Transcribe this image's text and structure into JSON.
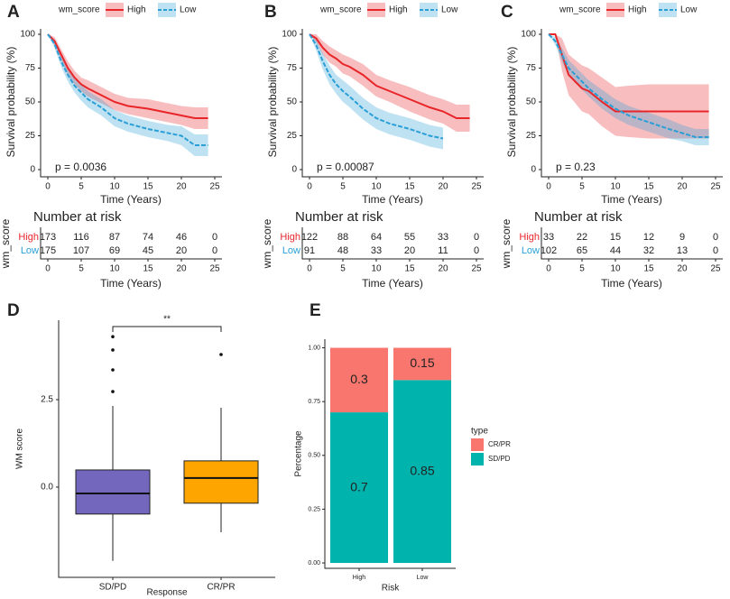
{
  "chart_data": [
    {
      "type": "survival",
      "panel_label": "A",
      "ylabel": "Survival probability (%)",
      "xlabel": "Time (Years)",
      "legend_title": "wm_score",
      "annotation": "p = 0.0036",
      "x": [
        0,
        1,
        2,
        3,
        4,
        5,
        6,
        8,
        10,
        12,
        15,
        18,
        20,
        22,
        24
      ],
      "xlim": [
        0,
        25
      ],
      "xticks": [
        0,
        5,
        10,
        15,
        20,
        25
      ],
      "ylim": [
        0,
        100
      ],
      "yticks": [
        0,
        25,
        50,
        75,
        100
      ],
      "series": [
        {
          "name": "High",
          "color": "#e8262a",
          "values": [
            100,
            95,
            85,
            75,
            68,
            63,
            60,
            55,
            50,
            47,
            45,
            42,
            40,
            38,
            38
          ],
          "upper": [
            100,
            98,
            89,
            80,
            73,
            68,
            66,
            61,
            56,
            53,
            52,
            49,
            47,
            46,
            46
          ],
          "lower": [
            100,
            92,
            81,
            70,
            63,
            58,
            54,
            49,
            44,
            41,
            38,
            35,
            33,
            30,
            30
          ]
        },
        {
          "name": "Low",
          "color": "#2a9fd6",
          "values": [
            100,
            93,
            80,
            70,
            62,
            57,
            52,
            46,
            38,
            34,
            30,
            27,
            25,
            18,
            18
          ],
          "upper": [
            100,
            96,
            84,
            75,
            67,
            63,
            58,
            52,
            44,
            40,
            36,
            33,
            32,
            26,
            26
          ],
          "lower": [
            100,
            90,
            76,
            65,
            57,
            51,
            46,
            40,
            32,
            28,
            24,
            21,
            18,
            10,
            10
          ]
        }
      ],
      "risk_table": {
        "title": "Number at risk",
        "ylabel": "wm_score",
        "rows": [
          [
            173,
            116,
            87,
            74,
            46,
            0
          ],
          [
            175,
            107,
            69,
            45,
            20,
            0
          ]
        ]
      }
    },
    {
      "type": "survival",
      "panel_label": "B",
      "ylabel": "Survival probability (%)",
      "xlabel": "Time (Years)",
      "legend_title": "wm_score",
      "annotation": "p = 0.00087",
      "x": [
        0,
        1,
        2,
        3,
        4,
        5,
        6,
        8,
        10,
        12,
        15,
        18,
        20,
        22,
        24
      ],
      "xlim": [
        0,
        25
      ],
      "xticks": [
        0,
        5,
        10,
        15,
        20,
        25
      ],
      "ylim": [
        0,
        100
      ],
      "yticks": [
        0,
        25,
        50,
        75,
        100
      ],
      "series": [
        {
          "name": "High",
          "color": "#e8262a",
          "values": [
            100,
            97,
            90,
            85,
            82,
            78,
            76,
            70,
            62,
            58,
            52,
            46,
            43,
            38,
            38
          ],
          "upper": [
            100,
            100,
            95,
            91,
            88,
            85,
            83,
            78,
            70,
            66,
            61,
            55,
            52,
            48,
            48
          ],
          "lower": [
            100,
            94,
            85,
            79,
            76,
            71,
            69,
            62,
            54,
            50,
            43,
            37,
            34,
            28,
            28
          ]
        },
        {
          "name": "Low",
          "color": "#2a9fd6",
          "values": [
            100,
            92,
            80,
            70,
            63,
            58,
            54,
            45,
            38,
            34,
            30,
            25,
            23,
            null,
            null
          ],
          "upper": [
            100,
            96,
            86,
            77,
            70,
            66,
            62,
            53,
            46,
            42,
            38,
            33,
            31,
            null,
            null
          ],
          "lower": [
            100,
            88,
            74,
            63,
            56,
            50,
            46,
            37,
            30,
            26,
            22,
            17,
            15,
            null,
            null
          ]
        }
      ],
      "risk_table": {
        "title": "Number at risk",
        "ylabel": "wm_score",
        "rows": [
          [
            122,
            88,
            64,
            55,
            33,
            0
          ],
          [
            91,
            48,
            33,
            20,
            11,
            0
          ]
        ]
      }
    },
    {
      "type": "survival",
      "panel_label": "C",
      "ylabel": "Survival probability (%)",
      "xlabel": "Time (Years)",
      "legend_title": "wm_score",
      "annotation": "p = 0.23",
      "x": [
        0,
        1,
        2,
        3,
        4,
        5,
        6,
        8,
        10,
        12,
        15,
        18,
        20,
        22,
        24
      ],
      "xlim": [
        0,
        25
      ],
      "xticks": [
        0,
        5,
        10,
        15,
        20,
        25
      ],
      "ylim": [
        0,
        100
      ],
      "yticks": [
        0,
        25,
        50,
        75,
        100
      ],
      "series": [
        {
          "name": "High",
          "color": "#e8262a",
          "values": [
            100,
            100,
            85,
            70,
            65,
            60,
            58,
            50,
            43,
            43,
            43,
            43,
            43,
            43,
            43
          ],
          "upper": [
            100,
            100,
            97,
            85,
            81,
            77,
            75,
            68,
            61,
            62,
            63,
            63,
            63,
            63,
            63
          ],
          "lower": [
            100,
            100,
            73,
            55,
            49,
            43,
            41,
            32,
            25,
            24,
            23,
            23,
            23,
            23,
            23
          ]
        },
        {
          "name": "Low",
          "color": "#2a9fd6",
          "values": [
            100,
            95,
            85,
            75,
            70,
            65,
            60,
            52,
            45,
            40,
            35,
            30,
            27,
            24,
            24
          ],
          "upper": [
            100,
            98,
            90,
            81,
            76,
            71,
            66,
            59,
            52,
            47,
            42,
            37,
            33,
            30,
            30
          ],
          "lower": [
            100,
            92,
            80,
            69,
            64,
            59,
            54,
            45,
            38,
            33,
            28,
            23,
            21,
            18,
            18
          ]
        }
      ],
      "risk_table": {
        "title": "Number at risk",
        "ylabel": "wm_score",
        "rows": [
          [
            33,
            22,
            15,
            12,
            9,
            0
          ],
          [
            102,
            65,
            44,
            32,
            13,
            0
          ]
        ]
      }
    },
    {
      "type": "box",
      "panel_label": "D",
      "ylabel": "WM score",
      "xlabel": "Response",
      "significance": "**",
      "categories": [
        "SD/PD",
        "CR/PR"
      ],
      "colors": [
        "#7366bd",
        "#ffa500"
      ],
      "ylim": [
        -2.58,
        4.77
      ],
      "yticks": [
        {
          "value": 0,
          "label": "0.0"
        },
        {
          "value": 2.5,
          "label": "2.5"
        }
      ],
      "boxes": [
        {
          "min": -2.11,
          "q1": -0.77,
          "median": -0.18,
          "q3": 0.49,
          "max": 2.32,
          "outliers": [
            2.73,
            3.35,
            3.92,
            4.3
          ]
        },
        {
          "min": -1.29,
          "q1": -0.46,
          "median": 0.26,
          "q3": 0.75,
          "max": 2.27,
          "outliers": [
            3.79
          ]
        }
      ]
    },
    {
      "type": "stacked_bar",
      "panel_label": "E",
      "ylabel": "Percentage",
      "xlabel": "Risk",
      "legend_title": "type",
      "categories": [
        "High",
        "Low"
      ],
      "ylim": [
        -0.025,
        1.04
      ],
      "yticks": [
        {
          "value": 0,
          "label": "0.00"
        },
        {
          "value": 0.25,
          "label": "0.25"
        },
        {
          "value": 0.5,
          "label": "0.50"
        },
        {
          "value": 0.75,
          "label": "0.75"
        },
        {
          "value": 1,
          "label": "1.00"
        }
      ],
      "series": [
        {
          "name": "CR/PR",
          "color": "#f8766d",
          "values": [
            0.3,
            0.15
          ]
        },
        {
          "name": "SD/PD",
          "color": "#00b3ad",
          "values": [
            0.7,
            0.85
          ]
        }
      ]
    }
  ]
}
